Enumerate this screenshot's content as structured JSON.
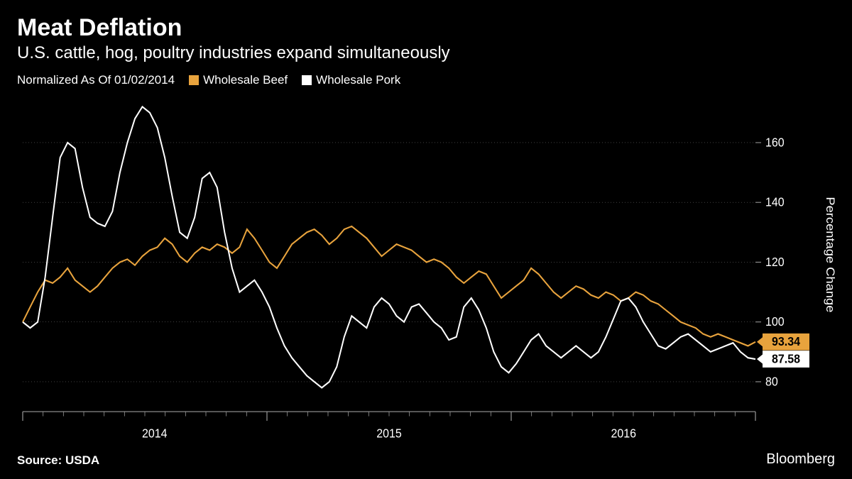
{
  "title": "Meat Deflation",
  "subtitle": "U.S. cattle, hog, poultry industries expand simultaneously",
  "legend": {
    "normalized": "Normalized As Of 01/02/2014",
    "beef": {
      "label": "Wholesale Beef",
      "color": "#e8a33d"
    },
    "pork": {
      "label": "Wholesale Pork",
      "color": "#ffffff"
    }
  },
  "source": "Source: USDA",
  "brand": "Bloomberg",
  "chart": {
    "type": "line",
    "background_color": "#000000",
    "grid_color": "#666666",
    "tick_color": "#999999",
    "axis_text_color": "#ffffff",
    "line_width": 2,
    "y_axis": {
      "title": "Percentage Change",
      "min": 70,
      "max": 175,
      "ticks": [
        80,
        100,
        120,
        140,
        160
      ]
    },
    "x_axis": {
      "labels": [
        "2014",
        "2015",
        "2016"
      ],
      "label_positions": [
        0.18,
        0.5,
        0.82
      ]
    },
    "end_values": {
      "beef": {
        "value": "93.34",
        "bg": "#e8a33d",
        "fg": "#000000"
      },
      "pork": {
        "value": "87.58",
        "bg": "#ffffff",
        "fg": "#000000"
      }
    },
    "series": {
      "beef": {
        "color": "#e8a33d",
        "data": [
          100,
          105,
          110,
          114,
          113,
          115,
          118,
          114,
          112,
          110,
          112,
          115,
          118,
          120,
          121,
          119,
          122,
          124,
          125,
          128,
          126,
          122,
          120,
          123,
          125,
          124,
          126,
          125,
          123,
          125,
          131,
          128,
          124,
          120,
          118,
          122,
          126,
          128,
          130,
          131,
          129,
          126,
          128,
          131,
          132,
          130,
          128,
          125,
          122,
          124,
          126,
          125,
          124,
          122,
          120,
          121,
          120,
          118,
          115,
          113,
          115,
          117,
          116,
          112,
          108,
          110,
          112,
          114,
          118,
          116,
          113,
          110,
          108,
          110,
          112,
          111,
          109,
          108,
          110,
          109,
          107,
          108,
          110,
          109,
          107,
          106,
          104,
          102,
          100,
          99,
          98,
          96,
          95,
          96,
          95,
          94,
          93,
          92,
          93.34
        ]
      },
      "pork": {
        "color": "#ffffff",
        "data": [
          100,
          98,
          100,
          115,
          135,
          155,
          160,
          158,
          145,
          135,
          133,
          132,
          137,
          150,
          160,
          168,
          172,
          170,
          165,
          155,
          142,
          130,
          128,
          135,
          148,
          150,
          145,
          130,
          118,
          110,
          112,
          114,
          110,
          105,
          98,
          92,
          88,
          85,
          82,
          80,
          78,
          80,
          85,
          95,
          102,
          100,
          98,
          105,
          108,
          106,
          102,
          100,
          105,
          106,
          103,
          100,
          98,
          94,
          95,
          105,
          108,
          104,
          98,
          90,
          85,
          83,
          86,
          90,
          94,
          96,
          92,
          90,
          88,
          90,
          92,
          90,
          88,
          90,
          95,
          101,
          107,
          108,
          105,
          100,
          96,
          92,
          91,
          93,
          95,
          96,
          94,
          92,
          90,
          91,
          92,
          93,
          90,
          88,
          87.58
        ]
      }
    }
  }
}
